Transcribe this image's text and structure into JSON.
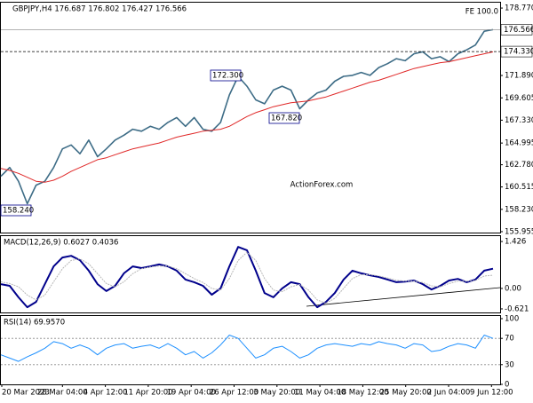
{
  "chart_data": [
    {
      "type": "line",
      "title": "GBPJPY,H4 176.687 176.802 176.427 176.566",
      "watermark": "ActionForex.com",
      "annotations": [
        "FE 100.0",
        "172.300",
        "167.820",
        "158.240"
      ],
      "series": [
        {
          "color": "#3d6c86",
          "values": [
            161.6,
            162.5,
            161.1,
            158.8,
            160.7,
            161.1,
            162.5,
            164.4,
            164.8,
            163.9,
            165.3,
            163.6,
            164.4,
            165.3,
            165.8,
            166.4,
            166.2,
            166.7,
            166.4,
            167.1,
            167.6,
            166.7,
            167.6,
            166.4,
            166.2,
            167.1,
            169.9,
            171.8,
            170.8,
            169.4,
            169.0,
            170.4,
            170.8,
            170.4,
            168.5,
            169.4,
            170.1,
            170.4,
            171.3,
            171.8,
            171.9,
            172.2,
            171.9,
            172.7,
            173.1,
            173.6,
            173.4,
            174.1,
            174.3,
            173.6,
            173.8,
            173.3,
            174.1,
            174.5,
            175.0,
            176.4,
            176.566
          ]
        },
        {
          "color": "#e02828",
          "values": [
            162.4,
            162.2,
            161.9,
            161.5,
            161.1,
            161.0,
            161.2,
            161.6,
            162.1,
            162.5,
            162.9,
            163.3,
            163.5,
            163.8,
            164.1,
            164.4,
            164.6,
            164.8,
            165.0,
            165.3,
            165.6,
            165.8,
            166.0,
            166.2,
            166.3,
            166.4,
            166.7,
            167.2,
            167.7,
            168.1,
            168.4,
            168.7,
            168.9,
            169.1,
            169.2,
            169.3,
            169.5,
            169.7,
            170.0,
            170.3,
            170.6,
            170.9,
            171.2,
            171.4,
            171.7,
            172.0,
            172.3,
            172.6,
            172.8,
            173.0,
            173.2,
            173.3,
            173.5,
            173.7,
            173.9,
            174.1,
            174.3
          ]
        }
      ],
      "price_lines": [
        176.566,
        {
          "value": 174.33,
          "label": "174.330"
        }
      ],
      "price_line_styles": [
        "solid",
        "dashed"
      ],
      "ylim": [
        155.86,
        179.32
      ],
      "yticks": [
        {
          "value": 178.77,
          "label": "178.770"
        },
        {
          "value": 171.89,
          "label": "171.890"
        },
        169.605,
        {
          "value": 167.33,
          "label": "167.330"
        },
        164.995,
        {
          "value": 162.78,
          "label": "162.780"
        },
        160.515,
        {
          "value": 158.23,
          "label": "158.230"
        },
        155.955
      ]
    },
    {
      "type": "line",
      "title": "MACD(12,26,9) 0.6027 0.4036",
      "series": [
        {
          "color": "#00008b",
          "values": [
            0.13,
            0.08,
            -0.27,
            -0.57,
            -0.41,
            0.13,
            0.67,
            0.94,
            0.99,
            0.86,
            0.54,
            0.13,
            -0.08,
            0.08,
            0.46,
            0.67,
            0.62,
            0.67,
            0.73,
            0.67,
            0.54,
            0.27,
            0.19,
            0.08,
            -0.19,
            0.0,
            0.67,
            1.26,
            1.16,
            0.54,
            -0.14,
            -0.27,
            0.0,
            0.19,
            0.13,
            -0.27,
            -0.57,
            -0.41,
            -0.14,
            0.27,
            0.54,
            0.46,
            0.4,
            0.35,
            0.27,
            0.19,
            0.21,
            0.24,
            0.13,
            -0.03,
            0.08,
            0.24,
            0.29,
            0.19,
            0.27,
            0.54,
            0.6
          ]
        },
        {
          "color": "#b8b8b8",
          "values": [
            0.2,
            0.15,
            0.05,
            -0.2,
            -0.35,
            -0.2,
            0.2,
            0.6,
            0.85,
            0.9,
            0.75,
            0.45,
            0.15,
            0.05,
            0.2,
            0.45,
            0.6,
            0.65,
            0.68,
            0.68,
            0.6,
            0.45,
            0.3,
            0.18,
            0.0,
            -0.05,
            0.3,
            0.85,
            1.1,
            0.85,
            0.3,
            -0.05,
            -0.1,
            0.05,
            0.12,
            -0.05,
            -0.35,
            -0.45,
            -0.3,
            0.0,
            0.3,
            0.42,
            0.42,
            0.38,
            0.32,
            0.25,
            0.22,
            0.22,
            0.18,
            0.08,
            0.05,
            0.15,
            0.22,
            0.22,
            0.24,
            0.38,
            0.4
          ]
        }
      ],
      "ylim": [
        -0.73,
        1.59
      ],
      "yticks": [
        1.426,
        {
          "value": 0,
          "label": "0.00"
        },
        -0.621
      ]
    },
    {
      "type": "line",
      "title": "RSI(14) 69.9570",
      "series": [
        {
          "color": "#1e90ff",
          "values": [
            45,
            40,
            35,
            42,
            48,
            55,
            65,
            62,
            55,
            60,
            55,
            45,
            55,
            60,
            62,
            55,
            58,
            60,
            55,
            62,
            55,
            45,
            50,
            40,
            48,
            60,
            75,
            70,
            55,
            40,
            45,
            55,
            58,
            50,
            40,
            45,
            55,
            60,
            62,
            60,
            58,
            62,
            60,
            65,
            62,
            60,
            55,
            62,
            60,
            50,
            52,
            58,
            62,
            60,
            55,
            75,
            70
          ]
        }
      ],
      "levels": [
        70,
        30
      ],
      "ylim": [
        0,
        104
      ],
      "yticks": [
        100,
        70,
        30,
        0
      ],
      "x_labels": [
        "20 Mar 2023",
        "28 Mar 04:00",
        "4 Apr 12:00",
        "11 Apr 20:00",
        "19 Apr 04:00",
        "26 Apr 12:00",
        "3 May 20:00",
        "11 May 04:00",
        "18 May 12:00",
        "25 May 20:00",
        "2 Jun 04:00",
        "9 Jun 12:00"
      ]
    }
  ]
}
